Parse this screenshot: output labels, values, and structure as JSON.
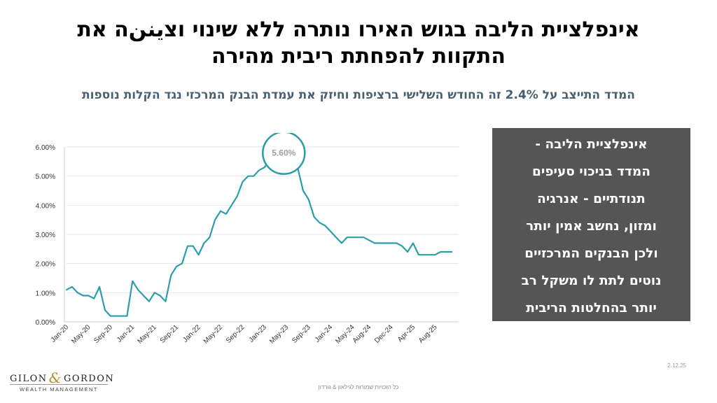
{
  "title": {
    "line1": "אינפלציית הליבה בגוש האירו נותרה ללא שינוי וצيننה את",
    "line2": "התקוות להפחתת ריבית מהירה"
  },
  "subtitle": "המדד התייצב על 2.4% זה החודש השלישי ברציפות וחיזק את עמדת הבנק המרכזי נגד הקלות נוספות",
  "callout": {
    "lines": [
      "אינפלציית הליבה -",
      "המדד בניכוי סעיפים",
      "תנודתיים - אנרגיה",
      "ומזון, נחשב אמין יותר",
      "ולכן הבנקים המרכזיים",
      "נוטים לתת לו משקל רב",
      "יותר בהחלטות הריבית"
    ]
  },
  "logo": {
    "left": "GILON",
    "amp": "&",
    "right": "GORDON",
    "sub": "WEALTH MANAGEMENT"
  },
  "footer": "כל הזכויות שמורות לגילאון & גורדון",
  "date": "2.12.25",
  "chart_data": {
    "type": "line",
    "title": "",
    "xlabel": "",
    "ylabel": "",
    "ylim": [
      0,
      0.06
    ],
    "yticks": [
      0,
      0.01,
      0.02,
      0.03,
      0.04,
      0.05,
      0.06
    ],
    "ytick_labels": [
      "0.00%",
      "1.00%",
      "2.00%",
      "3.00%",
      "4.00%",
      "5.00%",
      "6.00%"
    ],
    "x_tick_labels": [
      "Jan-20",
      "May-20",
      "Sep-20",
      "Jan-21",
      "May-21",
      "Sep-21",
      "Jan-22",
      "May-22",
      "Sep-22",
      "Jan-23",
      "May-23",
      "Sep-23",
      "Jan-24",
      "May-24",
      "Aug-24",
      "Dec-24",
      "Apr-25",
      "Aug-25"
    ],
    "x_tick_month_index": [
      0,
      4,
      8,
      12,
      16,
      20,
      24,
      28,
      32,
      36,
      40,
      44,
      48,
      52,
      55,
      59,
      63,
      67
    ],
    "x_start": "Jan-20",
    "grid": "horizontal",
    "line_color": "#2a9ea8",
    "annotation": {
      "text": "5.60%",
      "month_index": 40,
      "value": 0.056
    },
    "series": [
      {
        "values": [
          0.011,
          0.012,
          0.01,
          0.009,
          0.009,
          0.008,
          0.012,
          0.004,
          0.002,
          0.002,
          0.002,
          0.002,
          0.014,
          0.011,
          0.009,
          0.007,
          0.01,
          0.009,
          0.007,
          0.016,
          0.019,
          0.02,
          0.026,
          0.026,
          0.023,
          0.027,
          0.029,
          0.035,
          0.038,
          0.037,
          0.04,
          0.043,
          0.048,
          0.05,
          0.05,
          0.052,
          0.053,
          0.056,
          0.055,
          0.053,
          0.056,
          0.055,
          0.053,
          0.045,
          0.042,
          0.036,
          0.034,
          0.033,
          0.031,
          0.029,
          0.027,
          0.029,
          0.029,
          0.029,
          0.029,
          0.028,
          0.027,
          0.027,
          0.027,
          0.027,
          0.027,
          0.026,
          0.024,
          0.027,
          0.023,
          0.023,
          0.023,
          0.023,
          0.024,
          0.024,
          0.024
        ]
      }
    ]
  }
}
